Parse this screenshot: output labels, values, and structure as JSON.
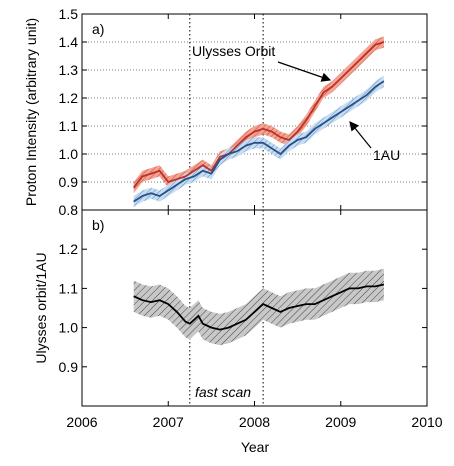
{
  "colors": {
    "ulysses_line": "#b8322b",
    "ulysses_band": "#f08672",
    "oneau_line": "#2c4f86",
    "oneau_band": "#9cc3e8",
    "ratio_line": "#000000",
    "ratio_band": "#8c8c8c"
  },
  "chart_data": [
    {
      "type": "line",
      "panel_label": "a)",
      "ylabel": "Proton Intensity (arbitrary unit)",
      "xlim": [
        2006,
        2010
      ],
      "ylim": [
        0.8,
        1.5
      ],
      "yticks": [
        "0.8",
        "0.9",
        "1.0",
        "1.1",
        "1.2",
        "1.3",
        "1.4",
        "1.5"
      ],
      "grid": "horizontal dotted",
      "vertical_markers": [
        2007.25,
        2008.1
      ],
      "series": [
        {
          "name": "Ulysses Orbit",
          "x": [
            2006.6,
            2006.7,
            2006.8,
            2006.9,
            2007.0,
            2007.1,
            2007.2,
            2007.3,
            2007.4,
            2007.5,
            2007.6,
            2007.7,
            2007.8,
            2007.9,
            2008.0,
            2008.1,
            2008.2,
            2008.3,
            2008.4,
            2008.5,
            2008.6,
            2008.7,
            2008.8,
            2008.9,
            2009.0,
            2009.1,
            2009.2,
            2009.3,
            2009.4,
            2009.5
          ],
          "values": [
            0.88,
            0.92,
            0.93,
            0.94,
            0.9,
            0.91,
            0.92,
            0.94,
            0.96,
            0.94,
            0.99,
            1.0,
            1.03,
            1.06,
            1.08,
            1.09,
            1.08,
            1.06,
            1.05,
            1.08,
            1.12,
            1.17,
            1.22,
            1.24,
            1.27,
            1.3,
            1.33,
            1.36,
            1.39,
            1.4
          ],
          "band": 0.02
        },
        {
          "name": "1AU",
          "x": [
            2006.6,
            2006.7,
            2006.8,
            2006.9,
            2007.0,
            2007.1,
            2007.2,
            2007.3,
            2007.4,
            2007.5,
            2007.6,
            2007.7,
            2007.8,
            2007.9,
            2008.0,
            2008.1,
            2008.2,
            2008.3,
            2008.4,
            2008.5,
            2008.6,
            2008.7,
            2008.8,
            2008.9,
            2009.0,
            2009.1,
            2009.2,
            2009.3,
            2009.4,
            2009.5
          ],
          "values": [
            0.83,
            0.85,
            0.86,
            0.85,
            0.87,
            0.89,
            0.91,
            0.92,
            0.94,
            0.93,
            0.98,
            1.0,
            1.01,
            1.03,
            1.04,
            1.04,
            1.02,
            1.0,
            1.03,
            1.05,
            1.06,
            1.09,
            1.11,
            1.13,
            1.15,
            1.17,
            1.19,
            1.21,
            1.24,
            1.26
          ],
          "band": 0.02
        }
      ],
      "annotations": [
        {
          "text": "Ulysses Orbit"
        },
        {
          "text": "1AU"
        }
      ]
    },
    {
      "type": "line",
      "panel_label": "b)",
      "xlabel": "Year",
      "ylabel": "Ulysses orbit/1AU",
      "xlim": [
        2006,
        2010
      ],
      "ylim": [
        0.8,
        1.3
      ],
      "xticks": [
        "2006",
        "2007",
        "2008",
        "2009",
        "2010"
      ],
      "yticks": [
        "0.9",
        "1.0",
        "1.1",
        "1.2"
      ],
      "vertical_markers": [
        2007.25,
        2008.1
      ],
      "series": [
        {
          "x": [
            2006.6,
            2006.7,
            2006.8,
            2006.9,
            2007.0,
            2007.1,
            2007.2,
            2007.25,
            2007.3,
            2007.35,
            2007.4,
            2007.5,
            2007.6,
            2007.7,
            2007.8,
            2007.9,
            2008.0,
            2008.1,
            2008.2,
            2008.3,
            2008.4,
            2008.5,
            2008.6,
            2008.7,
            2008.8,
            2008.9,
            2009.0,
            2009.1,
            2009.2,
            2009.3,
            2009.4,
            2009.5
          ],
          "values": [
            1.08,
            1.07,
            1.065,
            1.07,
            1.06,
            1.04,
            1.015,
            1.01,
            1.02,
            1.03,
            1.01,
            1.0,
            0.995,
            1.0,
            1.01,
            1.02,
            1.04,
            1.06,
            1.05,
            1.04,
            1.05,
            1.055,
            1.06,
            1.06,
            1.07,
            1.08,
            1.09,
            1.1,
            1.1,
            1.105,
            1.105,
            1.11
          ],
          "band": 0.04
        }
      ],
      "annotations": [
        {
          "text": "fast scan"
        }
      ]
    }
  ]
}
